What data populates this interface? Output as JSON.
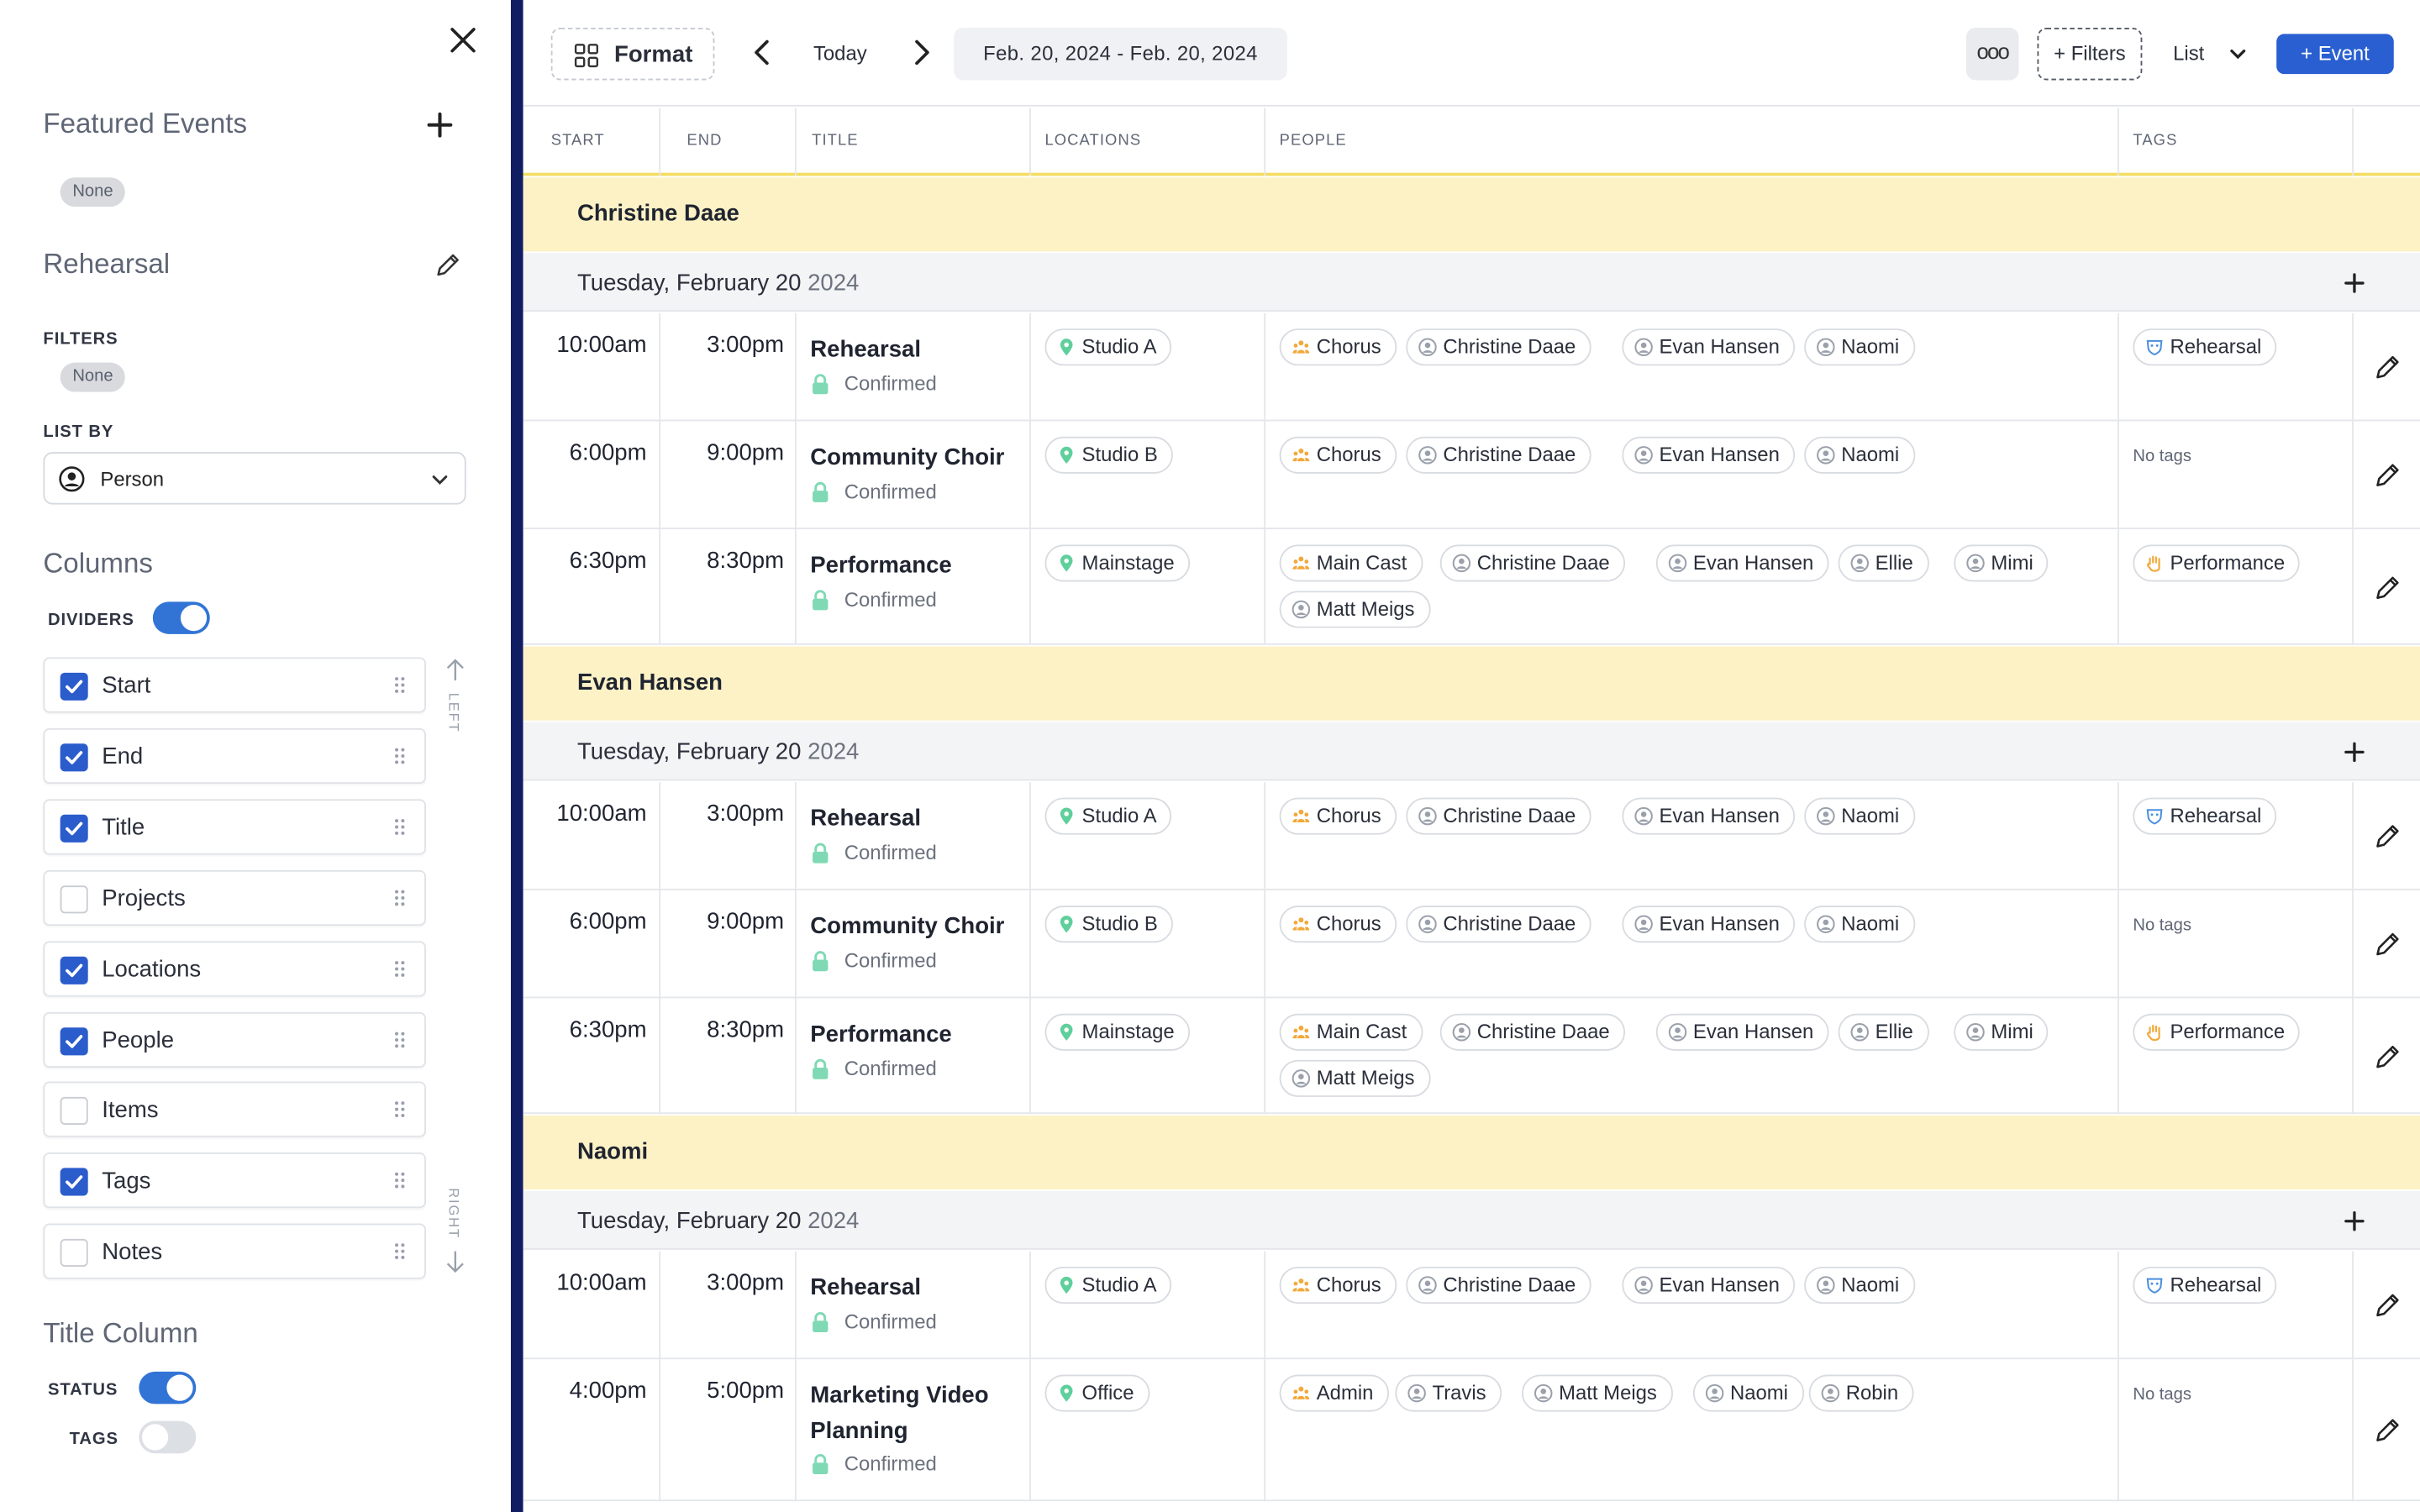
{
  "sidebar": {
    "featured_title": "Featured Events",
    "featured_value": "None",
    "view_name": "Rehearsal",
    "filters_label": "FILTERS",
    "filters_value": "None",
    "list_by_label": "LIST BY",
    "list_by_value": "Person",
    "columns_title": "Columns",
    "dividers_label": "DIVIDERS",
    "dividers_on": true,
    "columns": [
      {
        "label": "Start",
        "checked": true
      },
      {
        "label": "End",
        "checked": true
      },
      {
        "label": "Title",
        "checked": true
      },
      {
        "label": "Projects",
        "checked": false
      },
      {
        "label": "Locations",
        "checked": true
      },
      {
        "label": "People",
        "checked": true
      },
      {
        "label": "Items",
        "checked": false
      },
      {
        "label": "Tags",
        "checked": true
      },
      {
        "label": "Notes",
        "checked": false
      }
    ],
    "left_label": "LEFT",
    "right_label": "RIGHT",
    "title_column_title": "Title Column",
    "status_label": "STATUS",
    "status_on": true,
    "tags_label": "TAGS",
    "tags_on": false
  },
  "toolbar": {
    "format_label": "Format",
    "today_label": "Today",
    "date_range": "Feb. 20, 2024 - Feb. 20, 2024",
    "more_label": "ooo",
    "filters_label": "+ Filters",
    "view_label": "List",
    "event_label": "+  Event"
  },
  "columns_header": [
    "START",
    "END",
    "TITLE",
    "LOCATIONS",
    "PEOPLE",
    "TAGS"
  ],
  "colors": {
    "accent": "#2a5fd1",
    "group_bg": "#fdf2c6",
    "group_border": "#f3dd61",
    "status_green": "#7fd9b4",
    "chorus_orange": "#f2a93b",
    "sidebar_divider": "#111d63"
  },
  "groups": [
    {
      "name": "Christine Daae",
      "day": "Tuesday, February 20",
      "year": "2024",
      "events": [
        {
          "start": "10:00am",
          "end": "3:00pm",
          "title": "Rehearsal",
          "status": "Confirmed",
          "location": "Studio A",
          "people": [
            {
              "name": "Chorus",
              "type": "group"
            },
            {
              "name": "Christine Daae",
              "type": "person"
            },
            {
              "name": "Evan Hansen",
              "type": "person"
            },
            {
              "name": "Naomi",
              "type": "person"
            }
          ],
          "tag": "Rehearsal",
          "tag_icon": "mask-icon"
        },
        {
          "start": "6:00pm",
          "end": "9:00pm",
          "title": "Community Choir",
          "status": "Confirmed",
          "location": "Studio B",
          "people": [
            {
              "name": "Chorus",
              "type": "group"
            },
            {
              "name": "Christine Daae",
              "type": "person"
            },
            {
              "name": "Evan Hansen",
              "type": "person"
            },
            {
              "name": "Naomi",
              "type": "person"
            }
          ],
          "tag": "",
          "no_tags": "No tags"
        },
        {
          "start": "6:30pm",
          "end": "8:30pm",
          "title": "Performance",
          "status": "Confirmed",
          "location": "Mainstage",
          "people": [
            {
              "name": "Main Cast",
              "type": "group"
            },
            {
              "name": "Christine Daae",
              "type": "person"
            },
            {
              "name": "Evan Hansen",
              "type": "person"
            },
            {
              "name": "Ellie",
              "type": "person"
            },
            {
              "name": "Mimi",
              "type": "person"
            },
            {
              "name": "Matt Meigs",
              "type": "person"
            }
          ],
          "tag": "Performance",
          "tag_icon": "hand-icon"
        }
      ]
    },
    {
      "name": "Evan Hansen",
      "day": "Tuesday, February 20",
      "year": "2024",
      "events": [
        {
          "start": "10:00am",
          "end": "3:00pm",
          "title": "Rehearsal",
          "status": "Confirmed",
          "location": "Studio A",
          "people": [
            {
              "name": "Chorus",
              "type": "group"
            },
            {
              "name": "Christine Daae",
              "type": "person"
            },
            {
              "name": "Evan Hansen",
              "type": "person"
            },
            {
              "name": "Naomi",
              "type": "person"
            }
          ],
          "tag": "Rehearsal",
          "tag_icon": "mask-icon"
        },
        {
          "start": "6:00pm",
          "end": "9:00pm",
          "title": "Community Choir",
          "status": "Confirmed",
          "location": "Studio B",
          "people": [
            {
              "name": "Chorus",
              "type": "group"
            },
            {
              "name": "Christine Daae",
              "type": "person"
            },
            {
              "name": "Evan Hansen",
              "type": "person"
            },
            {
              "name": "Naomi",
              "type": "person"
            }
          ],
          "tag": "",
          "no_tags": "No tags"
        },
        {
          "start": "6:30pm",
          "end": "8:30pm",
          "title": "Performance",
          "status": "Confirmed",
          "location": "Mainstage",
          "people": [
            {
              "name": "Main Cast",
              "type": "group"
            },
            {
              "name": "Christine Daae",
              "type": "person"
            },
            {
              "name": "Evan Hansen",
              "type": "person"
            },
            {
              "name": "Ellie",
              "type": "person"
            },
            {
              "name": "Mimi",
              "type": "person"
            },
            {
              "name": "Matt Meigs",
              "type": "person"
            }
          ],
          "tag": "Performance",
          "tag_icon": "hand-icon"
        }
      ]
    },
    {
      "name": "Naomi",
      "day": "Tuesday, February 20",
      "year": "2024",
      "events": [
        {
          "start": "10:00am",
          "end": "3:00pm",
          "title": "Rehearsal",
          "status": "Confirmed",
          "location": "Studio A",
          "people": [
            {
              "name": "Chorus",
              "type": "group"
            },
            {
              "name": "Christine Daae",
              "type": "person"
            },
            {
              "name": "Evan Hansen",
              "type": "person"
            },
            {
              "name": "Naomi",
              "type": "person"
            }
          ],
          "tag": "Rehearsal",
          "tag_icon": "mask-icon"
        },
        {
          "start": "4:00pm",
          "end": "5:00pm",
          "title": "Marketing Video Planning",
          "status": "Confirmed",
          "location": "Office",
          "people": [
            {
              "name": "Admin",
              "type": "group"
            },
            {
              "name": "Travis",
              "type": "person"
            },
            {
              "name": "Matt Meigs",
              "type": "person"
            },
            {
              "name": "Naomi",
              "type": "person"
            },
            {
              "name": "Robin",
              "type": "person"
            }
          ],
          "tag": "",
          "no_tags": "No tags"
        }
      ]
    }
  ]
}
